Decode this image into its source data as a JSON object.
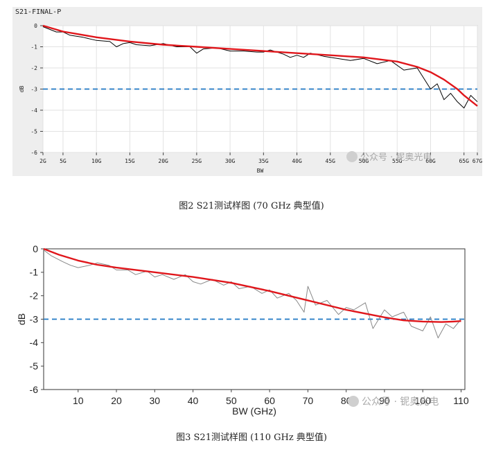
{
  "chart_data": [
    {
      "type": "line",
      "title": "S21-FINAL-P",
      "xlabel": "BW",
      "ylabel": "dB",
      "xlim": [
        2,
        67
      ],
      "ylim": [
        -6,
        0
      ],
      "xtick_values": [
        2,
        5,
        10,
        15,
        20,
        25,
        30,
        35,
        40,
        45,
        50,
        55,
        60,
        65,
        67
      ],
      "xtick_labels": [
        "2G",
        "5G",
        "10G",
        "15G",
        "20G",
        "25G",
        "30G",
        "35G",
        "40G",
        "45G",
        "50G",
        "55G",
        "60G",
        "65G",
        "67G"
      ],
      "ytick_values": [
        0,
        -1,
        -2,
        -3,
        -4,
        -5,
        -6
      ],
      "ytick_labels": [
        "0",
        "-1",
        "-2",
        "-3",
        "-4",
        "-5",
        "-6"
      ],
      "threshold": -3,
      "series": [
        {
          "name": "measured",
          "color": "#000000",
          "x": [
            2,
            4,
            5,
            6,
            8,
            10,
            12,
            13,
            14,
            15,
            16,
            18,
            20,
            22,
            24,
            25,
            26,
            28,
            30,
            32,
            34,
            35,
            36,
            38,
            39,
            40,
            41,
            42,
            44,
            46,
            48,
            50,
            52,
            54,
            56,
            58,
            60,
            61,
            62,
            63,
            64,
            65,
            66,
            67
          ],
          "y": [
            -0.05,
            -0.3,
            -0.3,
            -0.45,
            -0.55,
            -0.7,
            -0.75,
            -1.0,
            -0.85,
            -0.8,
            -0.9,
            -0.95,
            -0.85,
            -1.0,
            -1.0,
            -1.3,
            -1.1,
            -1.05,
            -1.2,
            -1.2,
            -1.25,
            -1.25,
            -1.15,
            -1.35,
            -1.5,
            -1.4,
            -1.5,
            -1.3,
            -1.45,
            -1.55,
            -1.65,
            -1.55,
            -1.8,
            -1.65,
            -2.1,
            -2.0,
            -3.0,
            -2.75,
            -3.5,
            -3.2,
            -3.6,
            -3.9,
            -3.3,
            -3.6
          ]
        },
        {
          "name": "fit",
          "color": "#e0161b",
          "x": [
            2,
            5,
            10,
            15,
            20,
            25,
            30,
            35,
            40,
            45,
            50,
            55,
            58,
            60,
            62,
            64,
            65,
            66,
            67
          ],
          "y": [
            0,
            -0.28,
            -0.55,
            -0.75,
            -0.9,
            -1.0,
            -1.1,
            -1.2,
            -1.3,
            -1.4,
            -1.5,
            -1.7,
            -1.95,
            -2.2,
            -2.55,
            -3.0,
            -3.3,
            -3.55,
            -3.8
          ]
        }
      ]
    },
    {
      "type": "line",
      "title": "",
      "xlabel": "BW (GHz)",
      "ylabel": "dB",
      "xlim": [
        1,
        111
      ],
      "ylim": [
        -6,
        0
      ],
      "xtick_values": [
        10,
        20,
        30,
        40,
        50,
        60,
        70,
        80,
        90,
        100,
        110
      ],
      "xtick_labels": [
        "10",
        "20",
        "30",
        "40",
        "50",
        "60",
        "70",
        "80",
        "90",
        "100",
        "110"
      ],
      "ytick_values": [
        0,
        -1,
        -2,
        -3,
        -4,
        -5,
        -6
      ],
      "ytick_labels": [
        "0",
        "-1",
        "-2",
        "-3",
        "-4",
        "-5",
        "-6"
      ],
      "threshold": -3,
      "series": [
        {
          "name": "measured",
          "color": "#888888",
          "x": [
            1,
            3,
            6,
            8,
            10,
            13,
            15,
            18,
            20,
            23,
            25,
            28,
            30,
            32,
            35,
            38,
            40,
            42,
            45,
            48,
            50,
            52,
            55,
            58,
            60,
            62,
            65,
            67,
            69,
            70,
            72,
            75,
            78,
            80,
            82,
            85,
            87,
            90,
            92,
            95,
            97,
            100,
            102,
            104,
            106,
            108,
            110
          ],
          "y": [
            -0.05,
            -0.3,
            -0.55,
            -0.7,
            -0.8,
            -0.7,
            -0.6,
            -0.7,
            -0.9,
            -0.9,
            -1.1,
            -0.95,
            -1.2,
            -1.1,
            -1.3,
            -1.1,
            -1.4,
            -1.5,
            -1.3,
            -1.55,
            -1.4,
            -1.7,
            -1.6,
            -1.9,
            -1.75,
            -2.1,
            -1.9,
            -2.2,
            -2.7,
            -1.6,
            -2.4,
            -2.2,
            -2.8,
            -2.5,
            -2.6,
            -2.3,
            -3.4,
            -2.6,
            -2.9,
            -2.7,
            -3.3,
            -3.5,
            -2.9,
            -3.8,
            -3.2,
            -3.4,
            -3.0
          ]
        },
        {
          "name": "fit",
          "color": "#e0161b",
          "x": [
            1,
            5,
            10,
            15,
            20,
            30,
            40,
            50,
            60,
            70,
            80,
            90,
            95,
            100,
            105,
            108,
            110
          ],
          "y": [
            0,
            -0.25,
            -0.5,
            -0.68,
            -0.8,
            -1.0,
            -1.2,
            -1.45,
            -1.8,
            -2.2,
            -2.6,
            -2.92,
            -3.05,
            -3.1,
            -3.12,
            -3.1,
            -3.08
          ]
        }
      ]
    }
  ],
  "captions": {
    "fig1": "图2  S21测试样图 (70 GHz 典型值)",
    "fig2": "图3  S21测试样图 (110 GHz 典型值)"
  },
  "watermark": "公众号 · 铌奥光电"
}
